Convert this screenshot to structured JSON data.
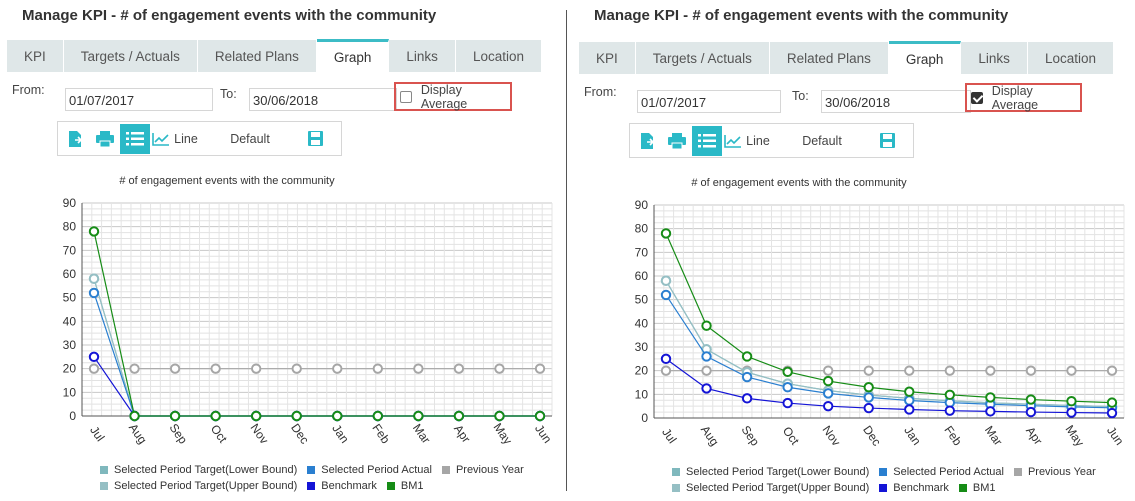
{
  "panels": [
    {
      "title": "Manage KPI - # of engagement events with the community",
      "tabs": [
        "KPI",
        "Targets / Actuals",
        "Related Plans",
        "Graph",
        "Links",
        "Location"
      ],
      "active_tab": 3,
      "from_label": "From:",
      "from_value": "01/07/2017",
      "to_label": "To:",
      "to_value": "30/06/2018",
      "display_average_label": "Display Average",
      "display_average_checked": false,
      "toolbar": {
        "line_label": "Line",
        "default_label": "Default"
      }
    },
    {
      "title": "Manage KPI - # of engagement events with the community",
      "tabs": [
        "KPI",
        "Targets / Actuals",
        "Related Plans",
        "Graph",
        "Links",
        "Location"
      ],
      "active_tab": 3,
      "from_label": "From:",
      "from_value": "01/07/2017",
      "to_label": "To:",
      "to_value": "30/06/2018",
      "display_average_label": "Display Average",
      "display_average_checked": true,
      "toolbar": {
        "line_label": "Line",
        "default_label": "Default"
      }
    }
  ],
  "colors": {
    "accent": "#2ab9c7",
    "highlight_border": "#d9534f",
    "target_lower": "#7fb8bd",
    "target_upper": "#95bfc4",
    "actual": "#2a7fd0",
    "previous_year": "#a6a6a6",
    "benchmark": "#1414d6",
    "bm1": "#168c16"
  },
  "chart_data": [
    {
      "type": "line",
      "title": "# of engagement events with the community",
      "categories": [
        "Jul",
        "Aug",
        "Sep",
        "Oct",
        "Nov",
        "Dec",
        "Jan",
        "Feb",
        "Mar",
        "Apr",
        "May",
        "Jun"
      ],
      "ylim": [
        0,
        90
      ],
      "yticks": [
        0,
        10,
        20,
        30,
        40,
        50,
        60,
        70,
        80,
        90
      ],
      "grid": true,
      "legend_position": "bottom",
      "series": [
        {
          "name": "Previous Year",
          "color": "#a6a6a6",
          "values": [
            20,
            20,
            20,
            20,
            20,
            20,
            20,
            20,
            20,
            20,
            20,
            20
          ]
        },
        {
          "name": "Selected Period Target(Lower Bound)",
          "color": "#7fb8bd",
          "values": [
            58,
            0,
            0,
            0,
            0,
            0,
            0,
            0,
            0,
            0,
            0,
            0
          ]
        },
        {
          "name": "Selected Period Target(Upper Bound)",
          "color": "#95bfc4",
          "values": [
            58,
            0,
            0,
            0,
            0,
            0,
            0,
            0,
            0,
            0,
            0,
            0
          ]
        },
        {
          "name": "Selected Period Actual",
          "color": "#2a7fd0",
          "values": [
            52,
            0,
            0,
            0,
            0,
            0,
            0,
            0,
            0,
            0,
            0,
            0
          ]
        },
        {
          "name": "Benchmark",
          "color": "#1414d6",
          "values": [
            25,
            0,
            0,
            0,
            0,
            0,
            0,
            0,
            0,
            0,
            0,
            0
          ]
        },
        {
          "name": "BM1",
          "color": "#168c16",
          "values": [
            78,
            0,
            0,
            0,
            0,
            0,
            0,
            0,
            0,
            0,
            0,
            0
          ]
        }
      ]
    },
    {
      "type": "line",
      "title": "# of engagement events with the community",
      "categories": [
        "Jul",
        "Aug",
        "Sep",
        "Oct",
        "Nov",
        "Dec",
        "Jan",
        "Feb",
        "Mar",
        "Apr",
        "May",
        "Jun"
      ],
      "ylim": [
        0,
        90
      ],
      "yticks": [
        0,
        10,
        20,
        30,
        40,
        50,
        60,
        70,
        80,
        90
      ],
      "grid": true,
      "legend_position": "bottom",
      "series": [
        {
          "name": "Previous Year",
          "color": "#a6a6a6",
          "values": [
            20,
            20,
            20,
            20,
            20,
            20,
            20,
            20,
            20,
            20,
            20,
            20
          ]
        },
        {
          "name": "Selected Period Target(Lower Bound)",
          "color": "#7fb8bd",
          "values": [
            58,
            29,
            19.3,
            14.5,
            11.6,
            9.7,
            8.3,
            7.3,
            6.4,
            5.8,
            5.3,
            4.8
          ]
        },
        {
          "name": "Selected Period Target(Upper Bound)",
          "color": "#95bfc4",
          "values": [
            58,
            29,
            19.3,
            14.5,
            11.6,
            9.7,
            8.3,
            7.3,
            6.4,
            5.8,
            5.3,
            4.8
          ]
        },
        {
          "name": "Selected Period Actual",
          "color": "#2a7fd0",
          "values": [
            52,
            26,
            17.3,
            13,
            10.4,
            8.7,
            7.4,
            6.5,
            5.8,
            5.2,
            4.7,
            4.3
          ]
        },
        {
          "name": "Benchmark",
          "color": "#1414d6",
          "values": [
            25,
            12.5,
            8.3,
            6.3,
            5,
            4.2,
            3.6,
            3.1,
            2.8,
            2.5,
            2.3,
            2.1
          ]
        },
        {
          "name": "BM1",
          "color": "#168c16",
          "values": [
            78,
            39,
            26,
            19.5,
            15.6,
            13,
            11.1,
            9.8,
            8.7,
            7.8,
            7.1,
            6.5
          ]
        }
      ]
    }
  ]
}
